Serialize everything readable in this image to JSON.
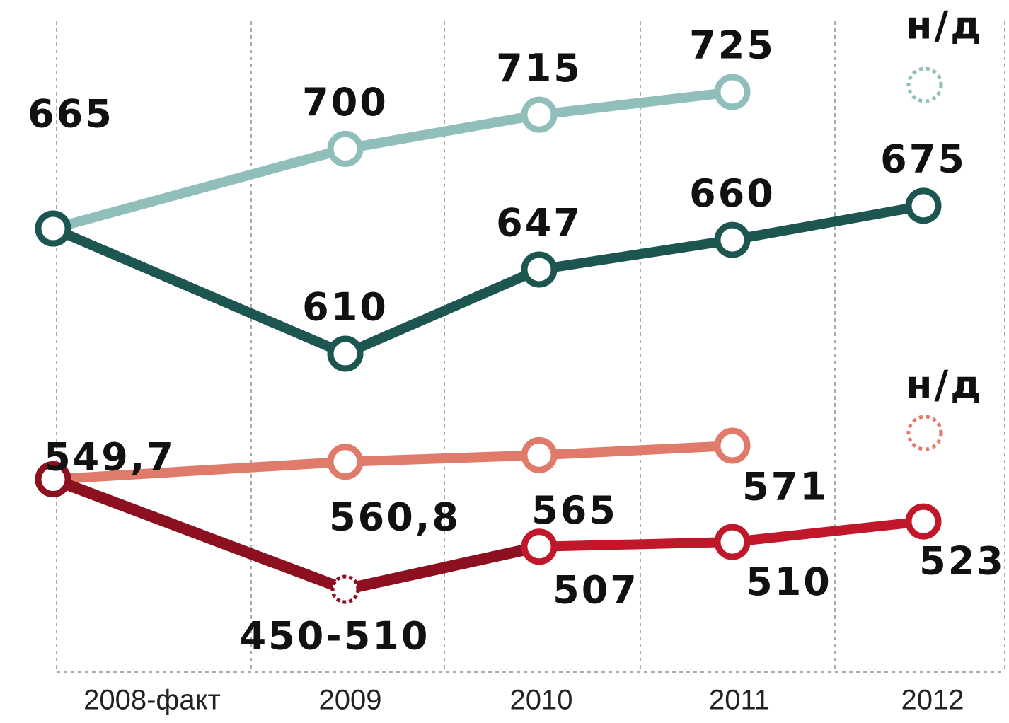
{
  "chart_data": {
    "type": "line",
    "categories": [
      "2008-факт",
      "2009",
      "2010",
      "2011",
      "2012"
    ],
    "groups": [
      {
        "ylim": [
          610,
          725
        ],
        "series": [
          {
            "name": null,
            "color": "#90bfbb",
            "values": [
              665,
              700,
              715,
              725,
              null
            ],
            "value_labels": [
              null,
              "700",
              "715",
              "725",
              null
            ],
            "na_label": "н/д"
          },
          {
            "name": null,
            "color": "#1d5550",
            "values": [
              665,
              610,
              647,
              660,
              675
            ],
            "value_labels": [
              "665",
              "610",
              "647",
              "660",
              "675"
            ]
          }
        ]
      },
      {
        "ylim": [
          450,
          571
        ],
        "series": [
          {
            "name": null,
            "color": "#e07b6c",
            "values": [
              549.7,
              560.8,
              565,
              571,
              null
            ],
            "value_labels": [
              null,
              "560,8",
              "565",
              "571",
              null
            ],
            "na_label": "н/д"
          },
          {
            "name": null,
            "color": "#c0182a",
            "values": [
              549.7,
              null,
              507,
              510,
              523
            ],
            "value_labels": [
              "549,7",
              null,
              "507",
              "510",
              "523"
            ],
            "range_2009": {
              "low": 450,
              "high": 510,
              "label": "450-510"
            }
          }
        ]
      }
    ]
  }
}
